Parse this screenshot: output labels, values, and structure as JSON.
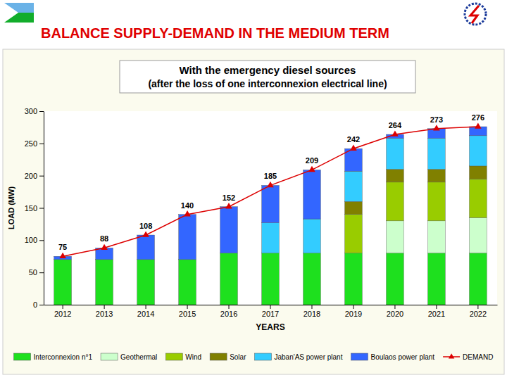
{
  "chart_data": {
    "type": "bar",
    "page_title": "BALANCE SUPPLY-DEMAND IN THE MEDIUM TERM",
    "title": "With the emergency diesel sources",
    "subtitle": "(after the loss of one interconnexion electrical line)",
    "x_label": "YEARS",
    "y_label": "LOAD (MW)",
    "stacked": true,
    "grid": false,
    "legend": "bottom",
    "categories": [
      "2012",
      "2013",
      "2014",
      "2015",
      "2016",
      "2017",
      "2018",
      "2019",
      "2020",
      "2021",
      "2022"
    ],
    "ylim": [
      0,
      300
    ],
    "yticks": [
      0,
      50,
      100,
      150,
      200,
      250,
      300
    ],
    "series": [
      {
        "name": "Interconnexion n°1",
        "type": "bar",
        "color": "#1ee01e",
        "values": [
          70,
          70,
          70,
          70,
          80,
          80,
          80,
          80,
          80,
          80,
          80
        ]
      },
      {
        "name": "Geothermal",
        "type": "bar",
        "color": "#ccffcc",
        "values": [
          0,
          0,
          0,
          0,
          0,
          0,
          0,
          0,
          50,
          50,
          55
        ]
      },
      {
        "name": "Wind",
        "type": "bar",
        "color": "#99cc00",
        "values": [
          0,
          0,
          0,
          0,
          0,
          0,
          0,
          60,
          60,
          60,
          60
        ]
      },
      {
        "name": "Solar",
        "type": "bar",
        "color": "#808000",
        "values": [
          0,
          0,
          0,
          0,
          0,
          0,
          0,
          20,
          20,
          20,
          20
        ]
      },
      {
        "name": "Jaban'AS power plant",
        "type": "bar",
        "color": "#33ccff",
        "values": [
          0,
          0,
          0,
          0,
          0,
          47,
          53,
          47,
          48,
          48,
          47
        ]
      },
      {
        "name": "Boulaos power plant",
        "type": "bar",
        "color": "#3366ff",
        "values": [
          5,
          18,
          38,
          70,
          72,
          58,
          76,
          35,
          6,
          15,
          14
        ]
      },
      {
        "name": "DEMAND",
        "type": "line",
        "color": "#dd0000",
        "marker": "triangle",
        "line_style": "solid",
        "data_labels": true,
        "values": [
          75,
          88,
          108,
          140,
          152,
          185,
          209,
          242,
          264,
          273,
          276
        ]
      }
    ]
  }
}
